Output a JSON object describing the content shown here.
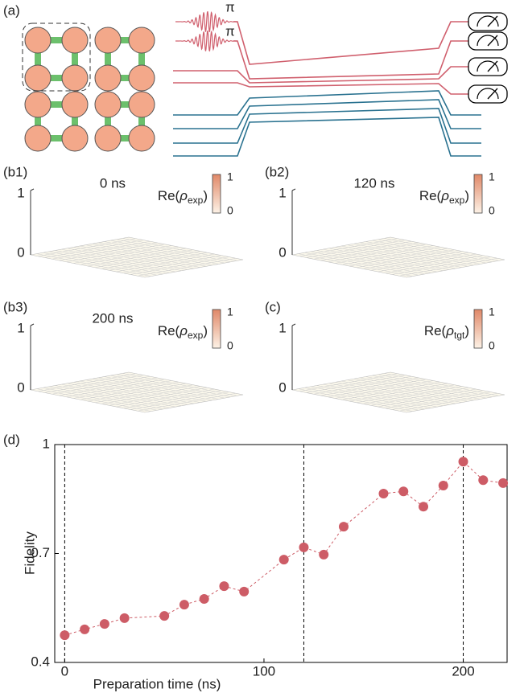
{
  "figure": {
    "panel_a": {
      "label": "(a)",
      "pulse_labels": [
        "π",
        "π"
      ]
    },
    "panels_b": [
      {
        "label": "(b1)",
        "time": "0 ns",
        "zmax": "1",
        "zmin": "0",
        "cbar_max": "1",
        "cbar_min": "0",
        "cbar_label": {
          "prefix": "Re(",
          "symbol": "ρ",
          "sub": "exp",
          "suffix": ")"
        }
      },
      {
        "label": "(b2)",
        "time": "120 ns",
        "zmax": "1",
        "zmin": "0",
        "cbar_max": "1",
        "cbar_min": "0",
        "cbar_label": {
          "prefix": "Re(",
          "symbol": "ρ",
          "sub": "exp",
          "suffix": ")"
        }
      },
      {
        "label": "(b3)",
        "time": "200 ns",
        "zmax": "1",
        "zmin": "0",
        "cbar_max": "1",
        "cbar_min": "0",
        "cbar_label": {
          "prefix": "Re(",
          "symbol": "ρ",
          "sub": "exp",
          "suffix": ")"
        }
      },
      {
        "label": "(c)",
        "zmax": "1",
        "zmin": "0",
        "cbar_max": "1",
        "cbar_min": "0",
        "cbar_label": {
          "prefix": "Re(",
          "symbol": "ρ",
          "sub": "tgt",
          "suffix": ")"
        }
      }
    ]
  },
  "chart_data": {
    "type": "line",
    "label": "(d)",
    "x_label": "Preparation time (ns)",
    "y_label": "Fidelity",
    "x": [
      0,
      10,
      20,
      30,
      50,
      60,
      70,
      80,
      90,
      110,
      120,
      130,
      140,
      160,
      170,
      180,
      190,
      200,
      210,
      220
    ],
    "values": [
      0.475,
      0.491,
      0.506,
      0.522,
      0.528,
      0.559,
      0.575,
      0.61,
      0.595,
      0.683,
      0.717,
      0.697,
      0.774,
      0.865,
      0.871,
      0.829,
      0.887,
      0.953,
      0.902,
      0.894
    ],
    "color": "#cd5c66",
    "line_style": "dashed",
    "xlim": [
      -5,
      222
    ],
    "ylim": [
      0.4,
      1
    ],
    "xticks": [
      0,
      100,
      200
    ],
    "yticks": [
      0.4,
      0.7,
      1
    ],
    "vlines": [
      0,
      120,
      200
    ]
  }
}
